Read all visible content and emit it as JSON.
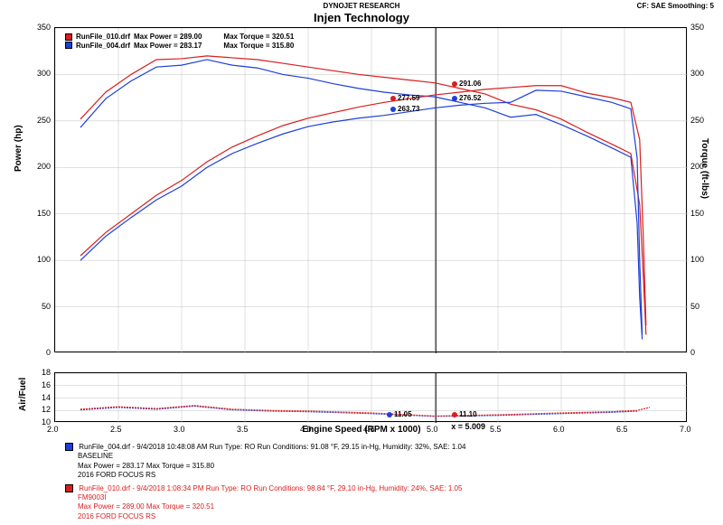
{
  "header": {
    "research": "DYNOJET RESEARCH",
    "title": "Injen Technology",
    "cf_sae": "CF: SAE   Smoothing: 5"
  },
  "yaxis_left": {
    "label": "Power (hp)",
    "min": 0,
    "max": 350,
    "step": 50,
    "fontsize": 10
  },
  "yaxis_right": {
    "label": "Torque (ft-lbs)",
    "min": 0,
    "max": 350,
    "step": 50,
    "fontsize": 10
  },
  "yaxis_afr": {
    "label": "Air/Fuel",
    "ticks": [
      10,
      12,
      14,
      16,
      18
    ],
    "fontsize": 10
  },
  "xaxis": {
    "label": "Engine Speed (RPM x 1000)",
    "min": 2.0,
    "max": 7.0,
    "step": 0.5,
    "fontsize": 10
  },
  "colors": {
    "series_red": "#d91e1e",
    "series_blue": "#1e3fd9",
    "grid": "#c0c0c0",
    "cursor": "#000000",
    "watermark": "#e8591c",
    "background": "#ffffff"
  },
  "legend_top": {
    "run1": {
      "file": "RunFile_010.drf",
      "maxpower_lbl": "Max Power = 289.00",
      "maxtorque_lbl": "Max Torque = 320.51",
      "color": "#d91e1e"
    },
    "run2": {
      "file": "RunFile_004.drf",
      "maxpower_lbl": "Max Power = 283.17",
      "maxtorque_lbl": "Max Torque = 315.80",
      "color": "#1e3fd9"
    }
  },
  "cursor": {
    "x_label": "x = 5.009",
    "x_value": 5.009
  },
  "markers": {
    "tq_red": {
      "value": "291.06",
      "color": "#d91e1e"
    },
    "tq_blue": {
      "value": "276.52",
      "color": "#1e3fd9"
    },
    "hp_red": {
      "value": "277.59",
      "color": "#d91e1e"
    },
    "hp_blue": {
      "value": "263.73",
      "color": "#1e3fd9"
    },
    "afr_red": {
      "value": "11.10",
      "color": "#d91e1e"
    },
    "afr_blue": {
      "value": "11.05",
      "color": "#1e3fd9"
    }
  },
  "footer": {
    "blue": {
      "line1": "RunFile_004.drf - 9/4/2018 10:48:08 AM   Run Type: RO   Run Conditions: 91.08 °F, 29.15 in-Hg,   Humidity: 32%, SAE: 1.04",
      "line2": "BASELINE",
      "line3": "Max Power = 283.17   Max Torque = 315.80",
      "line4": "2016 FORD FOCUS RS",
      "color": "#1e3fd9"
    },
    "red": {
      "line1": "RunFile_010.drf - 9/4/2018 1:08:34 PM   Run Type: RO   Run Conditions: 98.84 °F, 29.10 in-Hg,   Humidity: 24%, SAE: 1.05",
      "line2": "FM9003I",
      "line3": "Max Power = 289.00   Max Torque = 320.51",
      "line4": "2016 FORD FOCUS RS",
      "color": "#d91e1e"
    }
  },
  "watermark": {
    "main": "injen",
    "sub": "TECHNOLOGY"
  },
  "line_width": 1.2,
  "series": {
    "power_red": [
      [
        2.2,
        105
      ],
      [
        2.4,
        130
      ],
      [
        2.6,
        150
      ],
      [
        2.8,
        170
      ],
      [
        3.0,
        186
      ],
      [
        3.2,
        206
      ],
      [
        3.4,
        222
      ],
      [
        3.6,
        234
      ],
      [
        3.8,
        245
      ],
      [
        4.0,
        253
      ],
      [
        4.2,
        259
      ],
      [
        4.4,
        265
      ],
      [
        4.6,
        270
      ],
      [
        4.8,
        274
      ],
      [
        5.0,
        278
      ],
      [
        5.2,
        281
      ],
      [
        5.4,
        284
      ],
      [
        5.6,
        286
      ],
      [
        5.8,
        288
      ],
      [
        6.0,
        288
      ],
      [
        6.2,
        280
      ],
      [
        6.4,
        275
      ],
      [
        6.55,
        270
      ],
      [
        6.62,
        230
      ],
      [
        6.65,
        120
      ],
      [
        6.67,
        30
      ]
    ],
    "power_blue": [
      [
        2.2,
        100
      ],
      [
        2.4,
        126
      ],
      [
        2.6,
        146
      ],
      [
        2.8,
        165
      ],
      [
        3.0,
        180
      ],
      [
        3.2,
        200
      ],
      [
        3.4,
        215
      ],
      [
        3.6,
        226
      ],
      [
        3.8,
        236
      ],
      [
        4.0,
        244
      ],
      [
        4.2,
        249
      ],
      [
        4.4,
        253
      ],
      [
        4.6,
        256
      ],
      [
        4.8,
        260
      ],
      [
        5.0,
        264
      ],
      [
        5.2,
        267
      ],
      [
        5.4,
        269
      ],
      [
        5.6,
        270
      ],
      [
        5.8,
        283
      ],
      [
        6.0,
        282
      ],
      [
        6.2,
        276
      ],
      [
        6.4,
        270
      ],
      [
        6.55,
        263
      ],
      [
        6.6,
        210
      ],
      [
        6.62,
        100
      ],
      [
        6.64,
        20
      ]
    ],
    "torque_red": [
      [
        2.2,
        252
      ],
      [
        2.4,
        281
      ],
      [
        2.6,
        300
      ],
      [
        2.8,
        316
      ],
      [
        3.0,
        317
      ],
      [
        3.2,
        320
      ],
      [
        3.4,
        318
      ],
      [
        3.6,
        316
      ],
      [
        3.8,
        312
      ],
      [
        4.0,
        308
      ],
      [
        4.2,
        304
      ],
      [
        4.4,
        300
      ],
      [
        4.6,
        297
      ],
      [
        4.8,
        294
      ],
      [
        5.0,
        291
      ],
      [
        5.2,
        285
      ],
      [
        5.4,
        279
      ],
      [
        5.6,
        268
      ],
      [
        5.8,
        262
      ],
      [
        6.0,
        252
      ],
      [
        6.2,
        238
      ],
      [
        6.4,
        225
      ],
      [
        6.55,
        215
      ],
      [
        6.62,
        160
      ],
      [
        6.65,
        80
      ],
      [
        6.67,
        20
      ]
    ],
    "torque_blue": [
      [
        2.2,
        243
      ],
      [
        2.4,
        274
      ],
      [
        2.6,
        293
      ],
      [
        2.8,
        308
      ],
      [
        3.0,
        310
      ],
      [
        3.2,
        316
      ],
      [
        3.4,
        310
      ],
      [
        3.6,
        307
      ],
      [
        3.8,
        300
      ],
      [
        4.0,
        296
      ],
      [
        4.2,
        290
      ],
      [
        4.4,
        285
      ],
      [
        4.6,
        281
      ],
      [
        4.8,
        278
      ],
      [
        5.0,
        276
      ],
      [
        5.2,
        270
      ],
      [
        5.4,
        264
      ],
      [
        5.6,
        254
      ],
      [
        5.8,
        257
      ],
      [
        6.0,
        246
      ],
      [
        6.2,
        234
      ],
      [
        6.4,
        221
      ],
      [
        6.55,
        211
      ],
      [
        6.6,
        140
      ],
      [
        6.62,
        60
      ],
      [
        6.64,
        15
      ]
    ],
    "afr_red": [
      [
        2.2,
        12.2
      ],
      [
        2.5,
        12.6
      ],
      [
        2.8,
        12.3
      ],
      [
        3.1,
        12.8
      ],
      [
        3.4,
        12.2
      ],
      [
        3.7,
        12.0
      ],
      [
        4.0,
        11.9
      ],
      [
        4.5,
        11.6
      ],
      [
        5.0,
        11.1
      ],
      [
        5.5,
        11.3
      ],
      [
        6.0,
        11.6
      ],
      [
        6.4,
        11.8
      ],
      [
        6.6,
        12.0
      ],
      [
        6.7,
        12.5
      ]
    ],
    "afr_blue": [
      [
        2.2,
        12.1
      ],
      [
        2.5,
        12.5
      ],
      [
        2.8,
        12.2
      ],
      [
        3.1,
        12.7
      ],
      [
        3.4,
        12.1
      ],
      [
        3.7,
        11.9
      ],
      [
        4.0,
        11.8
      ],
      [
        4.5,
        11.5
      ],
      [
        5.0,
        11.05
      ],
      [
        5.5,
        11.2
      ],
      [
        6.0,
        11.5
      ],
      [
        6.4,
        11.7
      ],
      [
        6.6,
        11.9
      ]
    ]
  }
}
